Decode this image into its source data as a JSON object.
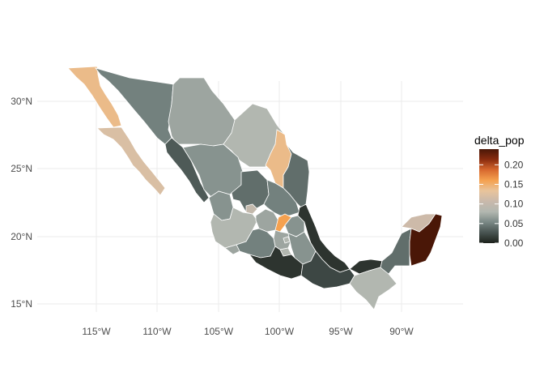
{
  "map": {
    "title": "",
    "legend": {
      "title": "delta_pop",
      "labels": [
        "0.20",
        "0.15",
        "0.10",
        "0.05",
        "0.00"
      ],
      "values": [
        0.2,
        0.15,
        0.1,
        0.05,
        0.0
      ],
      "range": [
        0.0,
        0.24
      ],
      "gradient": [
        "#1c211b",
        "#485451",
        "#798784",
        "#b2b7b0",
        "#c9b9ab",
        "#e8c49c",
        "#f5a14f",
        "#d8692f",
        "#8a2c0f",
        "#4a1707"
      ]
    },
    "x_ticks": [
      "115°W",
      "110°W",
      "105°W",
      "100°W",
      "95°W",
      "90°W"
    ],
    "x_tick_values": [
      -115,
      -110,
      -105,
      -100,
      -95,
      -90
    ],
    "y_ticks": [
      "30°N",
      "25°N",
      "20°N",
      "15°N"
    ],
    "y_tick_values": [
      30,
      25,
      20,
      15
    ],
    "xlim": [
      -119,
      -85
    ],
    "ylim": [
      14,
      33
    ],
    "states": [
      {
        "name": "Baja California",
        "delta_pop": 0.14
      },
      {
        "name": "Baja California Sur",
        "delta_pop": 0.12
      },
      {
        "name": "Sonora",
        "delta_pop": 0.05
      },
      {
        "name": "Chihuahua",
        "delta_pop": 0.07
      },
      {
        "name": "Coahuila",
        "delta_pop": 0.08
      },
      {
        "name": "Nuevo Leon",
        "delta_pop": 0.14
      },
      {
        "name": "Tamaulipas",
        "delta_pop": 0.04
      },
      {
        "name": "Sinaloa",
        "delta_pop": 0.03
      },
      {
        "name": "Durango",
        "delta_pop": 0.06
      },
      {
        "name": "Zacatecas",
        "delta_pop": 0.04
      },
      {
        "name": "San Luis Potosi",
        "delta_pop": 0.05
      },
      {
        "name": "Nayarit",
        "delta_pop": 0.06
      },
      {
        "name": "Jalisco",
        "delta_pop": 0.08
      },
      {
        "name": "Aguascalientes",
        "delta_pop": 0.1
      },
      {
        "name": "Guanajuato",
        "delta_pop": 0.07
      },
      {
        "name": "Queretaro",
        "delta_pop": 0.16
      },
      {
        "name": "Hidalgo",
        "delta_pop": 0.06
      },
      {
        "name": "Veracruz",
        "delta_pop": 0.01
      },
      {
        "name": "Michoacan",
        "delta_pop": 0.05
      },
      {
        "name": "Colima",
        "delta_pop": 0.07
      },
      {
        "name": "Mexico",
        "delta_pop": 0.07
      },
      {
        "name": "Mexico City",
        "delta_pop": 0.08
      },
      {
        "name": "Morelos",
        "delta_pop": 0.08
      },
      {
        "name": "Tlaxcala",
        "delta_pop": 0.07
      },
      {
        "name": "Puebla",
        "delta_pop": 0.06
      },
      {
        "name": "Guerrero",
        "delta_pop": 0.01
      },
      {
        "name": "Oaxaca",
        "delta_pop": 0.02
      },
      {
        "name": "Tabasco",
        "delta_pop": 0.01
      },
      {
        "name": "Chiapas",
        "delta_pop": 0.08
      },
      {
        "name": "Campeche",
        "delta_pop": 0.04
      },
      {
        "name": "Yucatan",
        "delta_pop": 0.11
      },
      {
        "name": "Quintana Roo",
        "delta_pop": 0.24
      }
    ]
  }
}
